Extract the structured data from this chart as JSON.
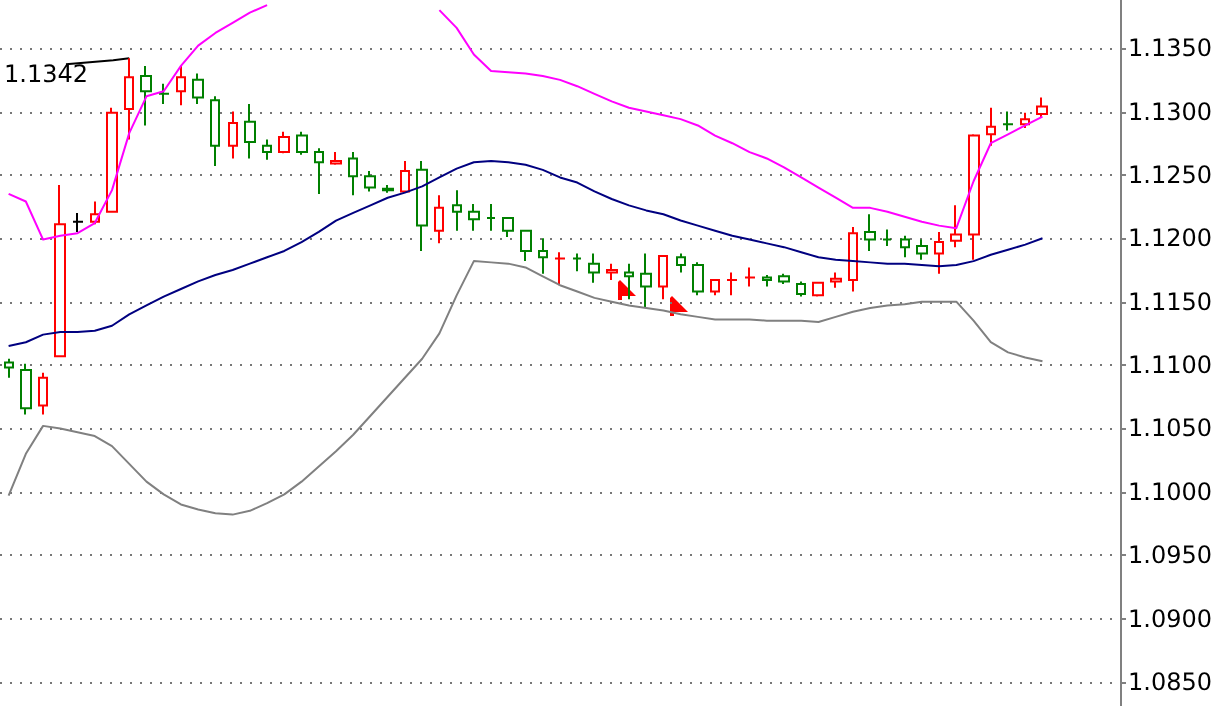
{
  "chart_data": {
    "type": "candlestick",
    "categories": [
      null,
      null,
      null,
      null,
      null,
      null,
      null,
      null,
      null,
      null,
      null,
      null,
      null,
      null,
      null,
      null,
      null,
      null,
      null,
      null,
      null,
      null,
      null,
      null,
      null,
      null,
      null,
      null,
      null,
      null,
      null,
      null,
      null,
      null,
      null,
      null,
      null,
      null,
      null,
      null,
      null,
      null,
      null,
      null,
      null,
      null,
      null,
      null,
      null,
      null,
      null,
      null,
      null,
      null,
      null,
      null,
      null,
      null,
      null,
      null,
      null
    ],
    "ohlc": [
      [
        1.1102,
        1.1105,
        1.109,
        1.1098
      ],
      [
        1.1096,
        1.1101,
        1.1061,
        1.1066
      ],
      [
        1.1068,
        1.1094,
        1.1061,
        1.109
      ],
      [
        1.1107,
        1.1242,
        1.1107,
        1.1211
      ],
      [
        1.1213,
        1.122,
        1.1205,
        1.1213
      ],
      [
        1.1213,
        1.1229,
        1.1211,
        1.1219
      ],
      [
        1.1221,
        1.1303,
        1.1221,
        1.1299
      ],
      [
        1.1302,
        1.1342,
        1.1278,
        1.1327
      ],
      [
        1.1328,
        1.1336,
        1.1289,
        1.1316
      ],
      [
        1.1314,
        1.1322,
        1.1306,
        1.1314
      ],
      [
        1.1316,
        1.1336,
        1.1305,
        1.1327
      ],
      [
        1.1325,
        1.133,
        1.1306,
        1.1311
      ],
      [
        1.1309,
        1.1312,
        1.1257,
        1.1273
      ],
      [
        1.1273,
        1.13,
        1.1263,
        1.1291
      ],
      [
        1.1292,
        1.1306,
        1.1263,
        1.1276
      ],
      [
        1.1273,
        1.1278,
        1.1262,
        1.1268
      ],
      [
        1.1268,
        1.1284,
        1.1267,
        1.128
      ],
      [
        1.1281,
        1.1284,
        1.1266,
        1.1268
      ],
      [
        1.1268,
        1.1271,
        1.1235,
        1.126
      ],
      [
        1.1259,
        1.1268,
        1.1258,
        1.1261
      ],
      [
        1.1263,
        1.1268,
        1.1234,
        1.1249
      ],
      [
        1.1249,
        1.1253,
        1.1237,
        1.124
      ],
      [
        1.1239,
        1.1242,
        1.1236,
        1.1238
      ],
      [
        1.1237,
        1.1261,
        1.1236,
        1.1253
      ],
      [
        1.1254,
        1.1261,
        1.119,
        1.121
      ],
      [
        1.1206,
        1.1234,
        1.1196,
        1.1224
      ],
      [
        1.1226,
        1.1238,
        1.1206,
        1.1221
      ],
      [
        1.1221,
        1.1227,
        1.1206,
        1.1215
      ],
      [
        1.1216,
        1.1227,
        1.1206,
        1.1216
      ],
      [
        1.1216,
        1.1216,
        1.1201,
        1.1206
      ],
      [
        1.1206,
        1.1206,
        1.1182,
        1.119
      ],
      [
        1.119,
        1.12,
        1.1172,
        1.1185
      ],
      [
        1.1184,
        1.1189,
        1.1163,
        1.1184
      ],
      [
        1.1184,
        1.1188,
        1.1174,
        1.1184
      ],
      [
        1.118,
        1.1188,
        1.1165,
        1.1173
      ],
      [
        1.1173,
        1.118,
        1.1167,
        1.1175
      ],
      [
        1.1173,
        1.118,
        1.1152,
        1.117
      ],
      [
        1.1172,
        1.1188,
        1.1145,
        1.1162
      ],
      [
        1.1162,
        1.1186,
        1.1152,
        1.1186
      ],
      [
        1.1185,
        1.1188,
        1.1173,
        1.1179
      ],
      [
        1.1179,
        1.1181,
        1.1155,
        1.1158
      ],
      [
        1.1158,
        1.1167,
        1.1155,
        1.1167
      ],
      [
        1.1167,
        1.1173,
        1.1155,
        1.1167
      ],
      [
        1.1169,
        1.1177,
        1.1162,
        1.1169
      ],
      [
        1.1169,
        1.1171,
        1.1162,
        1.1167
      ],
      [
        1.117,
        1.1172,
        1.1164,
        1.1166
      ],
      [
        1.1164,
        1.1166,
        1.1154,
        1.1156
      ],
      [
        1.1155,
        1.1165,
        1.1154,
        1.1165
      ],
      [
        1.1166,
        1.1173,
        1.1161,
        1.1168
      ],
      [
        1.1167,
        1.1209,
        1.1158,
        1.1204
      ],
      [
        1.1205,
        1.1219,
        1.119,
        1.1199
      ],
      [
        1.1199,
        1.1207,
        1.1194,
        1.1199
      ],
      [
        1.1199,
        1.1202,
        1.1185,
        1.1193
      ],
      [
        1.1194,
        1.1199,
        1.1183,
        1.1188
      ],
      [
        1.1188,
        1.1205,
        1.1172,
        1.1197
      ],
      [
        1.1198,
        1.1226,
        1.1193,
        1.1203
      ],
      [
        1.1203,
        1.1282,
        1.1183,
        1.1281
      ],
      [
        1.1282,
        1.1303,
        1.1273,
        1.1288
      ],
      [
        1.129,
        1.13,
        1.1285,
        1.129
      ],
      [
        1.129,
        1.1299,
        1.1287,
        1.1294
      ],
      [
        1.1298,
        1.1311,
        1.1295,
        1.1304
      ]
    ],
    "colors": [
      "#008000",
      "#008000",
      "#ff0000",
      "#ff0000",
      "#000000",
      "#ff0000",
      "#ff0000",
      "#ff0000",
      "#008000",
      "#008000",
      "#ff0000",
      "#008000",
      "#008000",
      "#ff0000",
      "#008000",
      "#008000",
      "#ff0000",
      "#008000",
      "#008000",
      "#ff0000",
      "#008000",
      "#008000",
      "#008000",
      "#ff0000",
      "#008000",
      "#ff0000",
      "#008000",
      "#008000",
      "#008000",
      "#008000",
      "#008000",
      "#008000",
      "#ff0000",
      "#008000",
      "#008000",
      "#ff0000",
      "#008000",
      "#008000",
      "#ff0000",
      "#008000",
      "#008000",
      "#ff0000",
      "#ff0000",
      "#ff0000",
      "#008000",
      "#008000",
      "#008000",
      "#ff0000",
      "#ff0000",
      "#ff0000",
      "#008000",
      "#008000",
      "#008000",
      "#008000",
      "#ff0000",
      "#ff0000",
      "#ff0000",
      "#ff0000",
      "#008000",
      "#ff0000",
      "#ff0000"
    ],
    "series": [
      {
        "type": "line",
        "color": "#ff00ff",
        "values": [
          1.1235,
          1.1229,
          1.1199,
          1.1202,
          1.1204,
          1.1212,
          1.1238,
          1.1283,
          1.1312,
          1.1316,
          1.1336,
          1.1352,
          1.1362,
          1.137,
          1.1378,
          1.1384,
          null,
          null,
          null,
          null,
          null,
          null,
          null,
          null,
          null,
          1.138,
          1.1366,
          1.1345,
          1.1332,
          1.1331,
          1.133,
          1.1328,
          1.1325,
          1.132,
          1.1314,
          1.1308,
          1.1303,
          1.13,
          1.1297,
          1.1294,
          1.1289,
          1.1281,
          1.1275,
          1.1268,
          1.1263,
          1.1256,
          1.1248,
          1.124,
          1.1232,
          1.1224,
          1.1224,
          1.1221,
          1.1217,
          1.1213,
          1.121,
          1.1208,
          1.1245,
          1.1275,
          1.1282,
          1.1289,
          1.1296
        ]
      },
      {
        "type": "line",
        "color": "#000080",
        "values": [
          1.1115,
          1.1118,
          1.1124,
          1.1126,
          1.1126,
          1.1127,
          1.1131,
          1.114,
          1.1147,
          1.1154,
          1.116,
          1.1166,
          1.1171,
          1.1175,
          1.118,
          1.1185,
          1.119,
          1.1197,
          1.1205,
          1.1214,
          1.122,
          1.1226,
          1.1232,
          1.1236,
          1.1241,
          1.1248,
          1.1255,
          1.126,
          1.1261,
          1.126,
          1.1258,
          1.1254,
          1.1248,
          1.1244,
          1.1237,
          1.1231,
          1.1226,
          1.1222,
          1.1219,
          1.1214,
          1.121,
          1.1206,
          1.1202,
          1.1199,
          1.1196,
          1.1193,
          1.1189,
          1.1185,
          1.1183,
          1.1182,
          1.1181,
          1.118,
          1.118,
          1.1179,
          1.1178,
          1.1179,
          1.1182,
          1.1187,
          1.1191,
          1.1195,
          1.12
        ]
      },
      {
        "type": "line",
        "color": "#808080",
        "values": [
          1.0997,
          1.103,
          1.1052,
          1.105,
          1.1047,
          1.1044,
          1.1036,
          1.1022,
          1.1008,
          1.0998,
          1.099,
          1.0986,
          1.0983,
          1.0982,
          1.0985,
          1.0991,
          1.0998,
          1.1008,
          1.102,
          1.1032,
          1.1045,
          1.106,
          1.1075,
          1.109,
          1.1105,
          1.1125,
          1.1155,
          1.1182,
          1.1181,
          1.118,
          1.1177,
          1.117,
          1.1163,
          1.1158,
          1.1153,
          1.115,
          1.1147,
          1.1145,
          1.1143,
          1.114,
          1.1138,
          1.1136,
          1.1136,
          1.1136,
          1.1135,
          1.1135,
          1.1135,
          1.1134,
          1.1138,
          1.1142,
          1.1145,
          1.1147,
          1.1148,
          1.115,
          1.115,
          1.115,
          1.1135,
          1.1118,
          1.111,
          1.1106,
          1.1103
        ]
      }
    ],
    "annotations": [
      "1.1342"
    ],
    "ylim": [
      1.0831,
      1.1388
    ],
    "yticks": [
      {
        "value": 1.085,
        "label": "1.0850"
      },
      {
        "value": 1.09,
        "label": "1.0900"
      },
      {
        "value": 1.095,
        "label": "1.0950"
      },
      {
        "value": 1.1,
        "label": "1.1000"
      },
      {
        "value": 1.105,
        "label": "1.1050"
      },
      {
        "value": 1.11,
        "label": "1.1100"
      },
      {
        "value": 1.115,
        "label": "1.1150"
      },
      {
        "value": 1.12,
        "label": "1.1200"
      },
      {
        "value": 1.125,
        "label": "1.1250"
      },
      {
        "value": 1.13,
        "label": "1.1300"
      },
      {
        "value": 1.135,
        "label": "1.1350"
      }
    ],
    "tick_labels": "y",
    "grid": "y",
    "marker": "none",
    "line_style": "solid"
  }
}
